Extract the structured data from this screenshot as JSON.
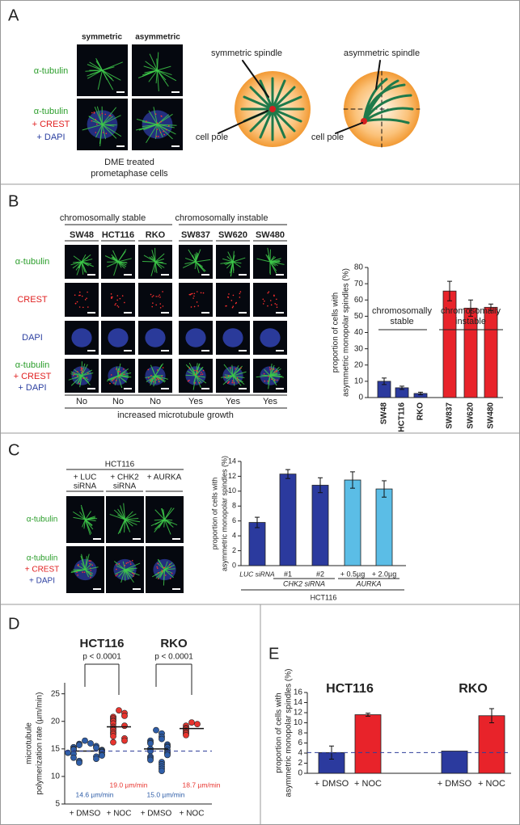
{
  "panels": {
    "A": {
      "label": "A",
      "columns": [
        "symmetric",
        "asymmetric"
      ],
      "row1": [
        "α-tubulin"
      ],
      "row2": [
        "α-tubulin",
        "+ CREST",
        "+ DAPI"
      ],
      "caption": [
        "DME treated",
        "prometaphase cells"
      ],
      "diagram": [
        "symmetric spindle",
        "cell pole",
        "asymmetric spindle",
        "cell pole"
      ]
    },
    "B": {
      "label": "B",
      "groups": [
        "chromosomally stable",
        "chromosomally instable"
      ],
      "cell_lines": [
        "SW48",
        "HCT116",
        "RKO",
        "SW837",
        "SW620",
        "SW480"
      ],
      "rows": [
        [
          "α-tubulin"
        ],
        [
          "CREST"
        ],
        [
          "DAPI"
        ],
        [
          "α-tubulin",
          "+ CREST",
          "+ DAPI"
        ]
      ],
      "growth": [
        "No",
        "No",
        "No",
        "Yes",
        "Yes",
        "Yes"
      ],
      "growth_caption": "increased microtubule growth"
    },
    "C": {
      "label": "C",
      "cell_line": "HCT116",
      "conditions": [
        [
          "+ LUC",
          "siRNA"
        ],
        [
          "+ CHK2",
          "siRNA"
        ],
        [
          "+ AURKA"
        ]
      ],
      "rows": [
        [
          "α-tubulin"
        ],
        [
          "α-tubulin",
          "+ CREST",
          "+ DAPI"
        ]
      ]
    },
    "D": {
      "label": "D"
    },
    "E": {
      "label": "E"
    }
  },
  "chart_data": [
    {
      "type": "bar",
      "categories": [
        "SW48",
        "HCT116",
        "RKO",
        "SW837",
        "SW620",
        "SW480"
      ],
      "values": [
        10,
        6,
        2.5,
        65.5,
        55,
        55.5
      ],
      "errors": [
        2,
        1,
        0.8,
        6,
        5,
        2
      ],
      "colors": [
        "#2b3a9e",
        "#2b3a9e",
        "#2b3a9e",
        "#e8232a",
        "#e8232a",
        "#e8232a"
      ],
      "group_labels": [
        [
          "chromosomally",
          "stable"
        ],
        [
          "chromosomally",
          "instable"
        ]
      ],
      "ylabel": [
        "proportion of cells with",
        "asymmetric monopolar spindles (%)"
      ],
      "ylim": [
        0,
        80
      ],
      "yticks": [
        0,
        10,
        20,
        30,
        40,
        50,
        60,
        70,
        80
      ]
    },
    {
      "type": "bar",
      "categories": [
        "LUC siRNA",
        "#1",
        "#2",
        "+ 0.5µg",
        "+ 2.0µg"
      ],
      "values": [
        5.8,
        12.3,
        10.8,
        11.5,
        10.3
      ],
      "errors": [
        0.7,
        0.6,
        1.0,
        1.1,
        1.1
      ],
      "colors": [
        "#2b3a9e",
        "#2b3a9e",
        "#2b3a9e",
        "#5bbde6",
        "#5bbde6"
      ],
      "group_labels": [
        "CHK2 siRNA",
        "AURKA"
      ],
      "xlabel": "HCT116",
      "ylabel": [
        "proportion of cells with",
        "asymmetric monopolar spindles (%)"
      ],
      "ylim": [
        0,
        14
      ],
      "yticks": [
        0,
        2,
        4,
        6,
        8,
        10,
        12,
        14
      ]
    },
    {
      "type": "strip",
      "groups": [
        "HCT116",
        "RKO"
      ],
      "categories": [
        "+ DMSO",
        "+ NOC",
        "+ DMSO",
        "+ NOC"
      ],
      "colors": [
        "#2f5ea8",
        "#e8342e",
        "#2f5ea8",
        "#e8342e"
      ],
      "points": [
        [
          16.5,
          16.0,
          15.9,
          15.7,
          15.5,
          15.3,
          15.2,
          15.0,
          14.9,
          14.8,
          14.7,
          14.5,
          14.4,
          14.3,
          14.1,
          14.0,
          13.8,
          13.6,
          13.4,
          13.2,
          12.8,
          12.5
        ],
        [
          22.0,
          21.5,
          21.0,
          20.8,
          20.5,
          20.2,
          20.0,
          19.6,
          19.2,
          19.0,
          18.7,
          18.4,
          18.0,
          17.7,
          17.3,
          16.9,
          16.5,
          16.2
        ],
        [
          18.4,
          17.8,
          17.2,
          16.8,
          16.5,
          16.2,
          16.0,
          15.8,
          15.5,
          15.3,
          15.0,
          14.8,
          14.6,
          14.4,
          14.2,
          13.9,
          13.6,
          13.3,
          13.0,
          12.6,
          12.2,
          11.8,
          11.4,
          11.0
        ],
        [
          19.8,
          19.5,
          19.2,
          18.8,
          18.6,
          18.3,
          18.0,
          17.8,
          17.5
        ]
      ],
      "means": [
        14.6,
        19.0,
        15.0,
        18.7
      ],
      "mean_labels": [
        "14.6 µm/min",
        "19.0 µm/min",
        "15.0 µm/min",
        "18.7 µm/min"
      ],
      "annotations": [
        "p < 0.0001",
        "p < 0.0001"
      ],
      "ylabel": [
        "microtubule",
        "polymerization rate (µm/min)"
      ],
      "ylim": [
        5,
        27
      ],
      "yticks": [
        5,
        10,
        15,
        20,
        25
      ]
    },
    {
      "type": "bar",
      "groups": [
        "HCT116",
        "RKO"
      ],
      "categories": [
        "+ DMSO",
        "+ NOC",
        "+ DMSO",
        "+ NOC"
      ],
      "values": [
        4.1,
        11.6,
        4.4,
        11.4
      ],
      "errors": [
        1.3,
        0.3,
        null,
        1.4
      ],
      "colors": [
        "#2b3a9e",
        "#e8232a",
        "#2b3a9e",
        "#e8232a"
      ],
      "ylabel": [
        "proportion of cells with",
        "asymmetric monopolar spindles (%)"
      ],
      "ylim": [
        0,
        16
      ],
      "yticks": [
        0,
        2,
        4,
        6,
        8,
        10,
        12,
        14,
        16
      ]
    }
  ]
}
